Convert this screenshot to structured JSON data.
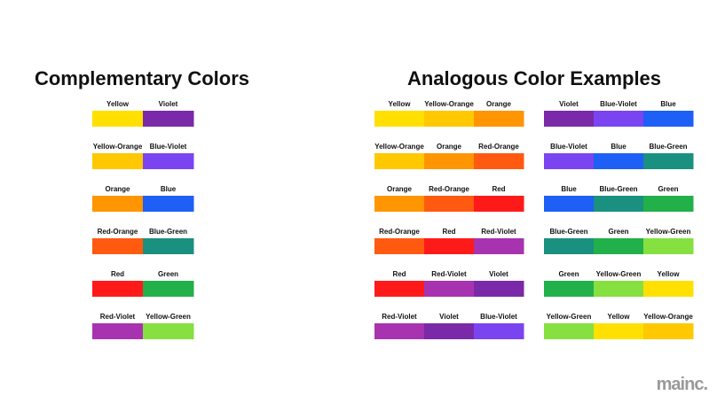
{
  "complementary": {
    "title": "Complementary Colors",
    "pairs": [
      [
        {
          "label": "Yellow",
          "color": "#ffe000"
        },
        {
          "label": "Violet",
          "color": "#7a2aa8"
        }
      ],
      [
        {
          "label": "Yellow-Orange",
          "color": "#ffc800"
        },
        {
          "label": "Blue-Violet",
          "color": "#7a45f0"
        }
      ],
      [
        {
          "label": "Orange",
          "color": "#ff9500"
        },
        {
          "label": "Blue",
          "color": "#1e5ff5"
        }
      ],
      [
        {
          "label": "Red-Orange",
          "color": "#ff5a10"
        },
        {
          "label": "Blue-Green",
          "color": "#1a9080"
        }
      ],
      [
        {
          "label": "Red",
          "color": "#ff1a1a"
        },
        {
          "label": "Green",
          "color": "#22b04a"
        }
      ],
      [
        {
          "label": "Red-Violet",
          "color": "#a833b0"
        },
        {
          "label": "Yellow-Green",
          "color": "#86e040"
        }
      ]
    ]
  },
  "analogous": {
    "title": "Analogous Color Examples",
    "columns": [
      [
        [
          {
            "label": "Yellow",
            "color": "#ffe000"
          },
          {
            "label": "Yellow-Orange",
            "color": "#ffc800"
          },
          {
            "label": "Orange",
            "color": "#ff9500"
          }
        ],
        [
          {
            "label": "Yellow-Orange",
            "color": "#ffc800"
          },
          {
            "label": "Orange",
            "color": "#ff9500"
          },
          {
            "label": "Red-Orange",
            "color": "#ff5a10"
          }
        ],
        [
          {
            "label": "Orange",
            "color": "#ff9500"
          },
          {
            "label": "Red-Orange",
            "color": "#ff5a10"
          },
          {
            "label": "Red",
            "color": "#ff1a1a"
          }
        ],
        [
          {
            "label": "Red-Orange",
            "color": "#ff5a10"
          },
          {
            "label": "Red",
            "color": "#ff1a1a"
          },
          {
            "label": "Red-Violet",
            "color": "#a833b0"
          }
        ],
        [
          {
            "label": "Red",
            "color": "#ff1a1a"
          },
          {
            "label": "Red-Violet",
            "color": "#a833b0"
          },
          {
            "label": "Violet",
            "color": "#7a2aa8"
          }
        ],
        [
          {
            "label": "Red-Violet",
            "color": "#a833b0"
          },
          {
            "label": "Violet",
            "color": "#7a2aa8"
          },
          {
            "label": "Blue-Violet",
            "color": "#7a45f0"
          }
        ]
      ],
      [
        [
          {
            "label": "Violet",
            "color": "#7a2aa8"
          },
          {
            "label": "Blue-Violet",
            "color": "#7a45f0"
          },
          {
            "label": "Blue",
            "color": "#1e5ff5"
          }
        ],
        [
          {
            "label": "Blue-Violet",
            "color": "#7a45f0"
          },
          {
            "label": "Blue",
            "color": "#1e5ff5"
          },
          {
            "label": "Blue-Green",
            "color": "#1a9080"
          }
        ],
        [
          {
            "label": "Blue",
            "color": "#1e5ff5"
          },
          {
            "label": "Blue-Green",
            "color": "#1a9080"
          },
          {
            "label": "Green",
            "color": "#22b04a"
          }
        ],
        [
          {
            "label": "Blue-Green",
            "color": "#1a9080"
          },
          {
            "label": "Green",
            "color": "#22b04a"
          },
          {
            "label": "Yellow-Green",
            "color": "#86e040"
          }
        ],
        [
          {
            "label": "Green",
            "color": "#22b04a"
          },
          {
            "label": "Yellow-Green",
            "color": "#86e040"
          },
          {
            "label": "Yellow",
            "color": "#ffe000"
          }
        ],
        [
          {
            "label": "Yellow-Green",
            "color": "#86e040"
          },
          {
            "label": "Yellow",
            "color": "#ffe000"
          },
          {
            "label": "Yellow-Orange",
            "color": "#ffc800"
          }
        ]
      ]
    ]
  },
  "logo": {
    "text": "mainc."
  }
}
